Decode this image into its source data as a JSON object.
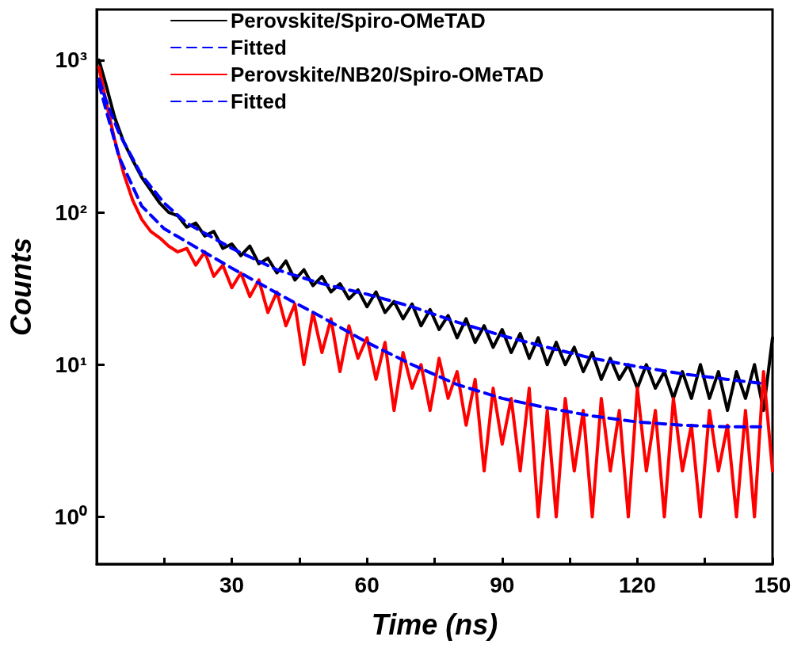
{
  "chart_data": {
    "type": "line",
    "xlabel": "Time (ns)",
    "ylabel": "Counts",
    "log": "y",
    "legend": "top",
    "grid": false,
    "marker": "none",
    "xlim": [
      0,
      150
    ],
    "xticks": [
      {
        "value": 15,
        "label": null
      },
      30,
      {
        "value": 45,
        "label": null
      },
      60,
      {
        "value": 75,
        "label": null
      },
      90,
      {
        "value": 105,
        "label": null
      },
      120,
      {
        "value": 135,
        "label": null
      },
      150
    ],
    "ylim": [
      0.49,
      2150
    ],
    "yticks": [
      {
        "value": 1,
        "label": "10⁰"
      },
      {
        "value": 10,
        "label": "10¹"
      },
      {
        "value": 100,
        "label": "10²"
      },
      {
        "value": 1000,
        "label": "10³"
      }
    ],
    "series": [
      {
        "name": "Perovskite/Spiro-OMeTAD",
        "color": "#000000",
        "line_style": "solid",
        "x": [
          0.5,
          2,
          4,
          6,
          8,
          10,
          12,
          14,
          16,
          18,
          20,
          22,
          24,
          26,
          28,
          30,
          32,
          34,
          36,
          38,
          40,
          42,
          44,
          46,
          48,
          50,
          52,
          54,
          56,
          58,
          60,
          62,
          64,
          66,
          68,
          70,
          72,
          74,
          76,
          78,
          80,
          82,
          84,
          86,
          88,
          90,
          92,
          94,
          96,
          98,
          100,
          102,
          104,
          106,
          108,
          110,
          112,
          114,
          116,
          118,
          120,
          122,
          124,
          126,
          128,
          130,
          132,
          134,
          136,
          138,
          140,
          142,
          144,
          146,
          148,
          150
        ],
        "values": [
          1000,
          700,
          420,
          290,
          220,
          170,
          140,
          115,
          100,
          95,
          80,
          85,
          70,
          75,
          58,
          62,
          52,
          60,
          46,
          50,
          40,
          48,
          36,
          42,
          33,
          38,
          30,
          34,
          27,
          31,
          24,
          30,
          22,
          26,
          20,
          25,
          18,
          23,
          17,
          21,
          15,
          20,
          14,
          18,
          13,
          17,
          12,
          16,
          11,
          15,
          10,
          14,
          10,
          13,
          9,
          12,
          8,
          11,
          8,
          10,
          7,
          10,
          7,
          9,
          6,
          9,
          6,
          10,
          6,
          9,
          5,
          9,
          6,
          10,
          5,
          15
        ]
      },
      {
        "name": "Fitted",
        "color": "#0000ff",
        "line_style": "dashed",
        "x": [
          0.5,
          2,
          5,
          10,
          15,
          20,
          30,
          40,
          50,
          60,
          70,
          80,
          90,
          100,
          110,
          120,
          130,
          140,
          148
        ],
        "values": [
          750,
          550,
          330,
          175,
          115,
          85,
          58,
          42,
          34,
          29,
          24,
          19,
          15.5,
          13,
          11,
          9.7,
          8.7,
          8,
          7.5
        ]
      },
      {
        "name": "Perovskite/NB20/Spiro-OMeTAD",
        "color": "#ff0000",
        "line_style": "solid",
        "x": [
          0.5,
          2,
          4,
          6,
          8,
          10,
          12,
          14,
          16,
          18,
          20,
          22,
          24,
          26,
          28,
          30,
          32,
          34,
          36,
          38,
          40,
          42,
          44,
          46,
          48,
          50,
          52,
          54,
          56,
          58,
          60,
          62,
          64,
          66,
          68,
          70,
          72,
          74,
          76,
          78,
          80,
          82,
          84,
          86,
          88,
          90,
          92,
          94,
          96,
          98,
          100,
          102,
          104,
          106,
          108,
          110,
          112,
          114,
          116,
          118,
          120,
          122,
          124,
          126,
          128,
          130,
          132,
          134,
          136,
          138,
          140,
          142,
          144,
          146,
          148,
          150
        ],
        "values": [
          900,
          550,
          300,
          180,
          120,
          90,
          75,
          68,
          60,
          55,
          58,
          45,
          55,
          38,
          45,
          32,
          40,
          28,
          36,
          22,
          30,
          18,
          25,
          10,
          22,
          12,
          20,
          9,
          18,
          11,
          15,
          8,
          14,
          5,
          12,
          7,
          10,
          5,
          11,
          6,
          9,
          4,
          8,
          2,
          7,
          3,
          6,
          2,
          7,
          1,
          5,
          1,
          6,
          2,
          5,
          1,
          6,
          2,
          5,
          1,
          7,
          2,
          5,
          1,
          6,
          2,
          4,
          1,
          5,
          2,
          4,
          1,
          5,
          1,
          9,
          2
        ]
      },
      {
        "name": "Fitted",
        "color": "#0000ff",
        "line_style": "dashed",
        "x": [
          0.5,
          2,
          5,
          10,
          15,
          20,
          30,
          40,
          50,
          60,
          70,
          80,
          90,
          100,
          110,
          120,
          130,
          140,
          148
        ],
        "values": [
          700,
          480,
          230,
          110,
          78,
          64,
          43,
          29.5,
          20.5,
          14,
          10,
          7.4,
          6,
          5.2,
          4.6,
          4.2,
          4.0,
          3.9,
          3.9
        ]
      }
    ]
  }
}
